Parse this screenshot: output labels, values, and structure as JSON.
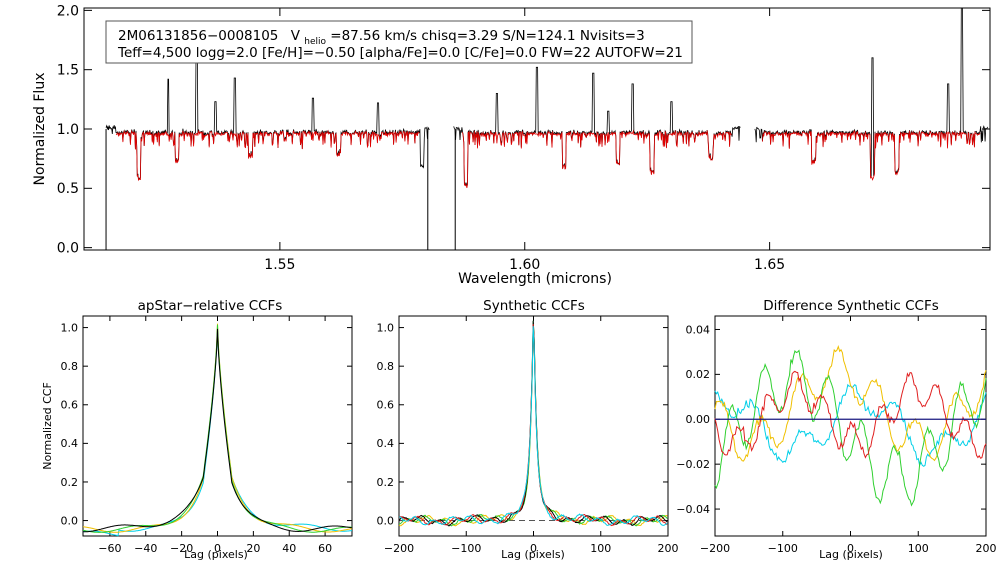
{
  "header": {
    "line1_id": "2M06131856−0008105",
    "line1_vpre": "V",
    "line1_vsub": "helio",
    "line1_rest": "=87.56 km/s  chisq=3.29  S/N=124.1  Nvisits=3",
    "line2": "Teff=4,500 logg=2.0 [Fe/H]=−0.50 [alpha/Fe]=0.0 [C/Fe]=0.0 FW=22 AUTOFW=21"
  },
  "colors": {
    "observed": "#000000",
    "model": "#e00000",
    "zero_line": "#1a1a80",
    "ccf_series": [
      "#00cfe8",
      "#f0c000",
      "#30d030",
      "#e02020",
      "#000000"
    ]
  },
  "chart_data": [
    {
      "id": "spectrum",
      "type": "line",
      "title": "",
      "xlabel": "Wavelength (microns)",
      "ylabel": "Normalized Flux",
      "xlim": [
        1.51,
        1.695
      ],
      "ylim": [
        -0.02,
        2.02
      ],
      "xticks": [
        1.55,
        1.6,
        1.65
      ],
      "xtick_labels": [
        "1.55",
        "1.60",
        "1.65"
      ],
      "yticks": [
        0.0,
        0.5,
        1.0,
        1.5,
        2.0
      ],
      "ytick_labels": [
        "0.0",
        "0.5",
        "1.0",
        "1.5",
        "2.0"
      ],
      "segments": [
        [
          1.5145,
          1.5805
        ],
        [
          1.5855,
          1.644
        ],
        [
          1.647,
          1.6945
        ]
      ],
      "dropouts": [
        1.5145,
        1.5802,
        1.5858
      ],
      "emission_spikes": [
        {
          "x": 1.5272,
          "y": 1.42
        },
        {
          "x": 1.533,
          "y": 1.7
        },
        {
          "x": 1.5368,
          "y": 1.23
        },
        {
          "x": 1.5408,
          "y": 1.43
        },
        {
          "x": 1.5568,
          "y": 1.26
        },
        {
          "x": 1.57,
          "y": 1.22
        },
        {
          "x": 1.5943,
          "y": 1.3
        },
        {
          "x": 1.6025,
          "y": 1.52
        },
        {
          "x": 1.614,
          "y": 1.47
        },
        {
          "x": 1.617,
          "y": 1.15
        },
        {
          "x": 1.622,
          "y": 1.38
        },
        {
          "x": 1.63,
          "y": 1.23
        },
        {
          "x": 1.671,
          "y": 1.6
        },
        {
          "x": 1.6865,
          "y": 1.38
        },
        {
          "x": 1.6893,
          "y": 2.02
        }
      ],
      "absorption_dips": [
        {
          "x": 1.5212,
          "y": 0.58
        },
        {
          "x": 1.529,
          "y": 0.72
        },
        {
          "x": 1.544,
          "y": 0.76
        },
        {
          "x": 1.562,
          "y": 0.78
        },
        {
          "x": 1.579,
          "y": 0.62
        },
        {
          "x": 1.588,
          "y": 0.5
        },
        {
          "x": 1.608,
          "y": 0.67
        },
        {
          "x": 1.619,
          "y": 0.7
        },
        {
          "x": 1.626,
          "y": 0.62
        },
        {
          "x": 1.638,
          "y": 0.74
        },
        {
          "x": 1.659,
          "y": 0.7
        },
        {
          "x": 1.671,
          "y": 0.58
        },
        {
          "x": 1.676,
          "y": 0.62
        }
      ],
      "continuum_level": 1.0
    },
    {
      "id": "apstar-ccf",
      "type": "line",
      "title": "apStar−relative CCFs",
      "xlabel": "Lag (pixels)",
      "ylabel": "Normalized CCF",
      "xlim": [
        -75,
        75
      ],
      "ylim": [
        -0.08,
        1.06
      ],
      "xticks": [
        -60,
        -40,
        -20,
        0,
        20,
        40,
        60
      ],
      "xtick_labels": [
        "−60",
        "−40",
        "−20",
        "0",
        "20",
        "40",
        "60"
      ],
      "yticks": [
        0.0,
        0.2,
        0.4,
        0.6,
        0.8,
        1.0
      ],
      "ytick_labels": [
        "0.0",
        "0.2",
        "0.4",
        "0.6",
        "0.8",
        "1.0"
      ],
      "peak": {
        "x": 0,
        "y": 1.0
      },
      "shoulder_y_at_lag8": 0.21,
      "wing_level": -0.04
    },
    {
      "id": "synthetic-ccf",
      "type": "line",
      "title": "Synthetic CCFs",
      "xlabel": "Lag (pixels)",
      "ylabel": "",
      "xlim": [
        -200,
        200
      ],
      "ylim": [
        -0.08,
        1.06
      ],
      "xticks": [
        -200,
        -100,
        0,
        100,
        200
      ],
      "xtick_labels": [
        "−200",
        "−100",
        "0",
        "100",
        "200"
      ],
      "yticks": [
        0.0,
        0.2,
        0.4,
        0.6,
        0.8,
        1.0
      ],
      "ytick_labels": [
        "0.0",
        "0.2",
        "0.4",
        "0.6",
        "0.8",
        "1.0"
      ],
      "peak": {
        "x": 0,
        "y": 1.0
      },
      "zero_dashed": true
    },
    {
      "id": "diff-ccf",
      "type": "line",
      "title": "Difference Synthetic CCFs",
      "xlabel": "Lag (pixels)",
      "ylabel": "",
      "xlim": [
        -200,
        200
      ],
      "ylim": [
        -0.052,
        0.046
      ],
      "xticks": [
        -200,
        -100,
        0,
        100,
        200
      ],
      "xtick_labels": [
        "−200",
        "−100",
        "0",
        "100",
        "200"
      ],
      "yticks": [
        -0.04,
        -0.02,
        0.0,
        0.02,
        0.04
      ],
      "ytick_labels": [
        "−0.04",
        "−0.02",
        "0.00",
        "0.02",
        "0.04"
      ],
      "zero_line": true
    }
  ]
}
